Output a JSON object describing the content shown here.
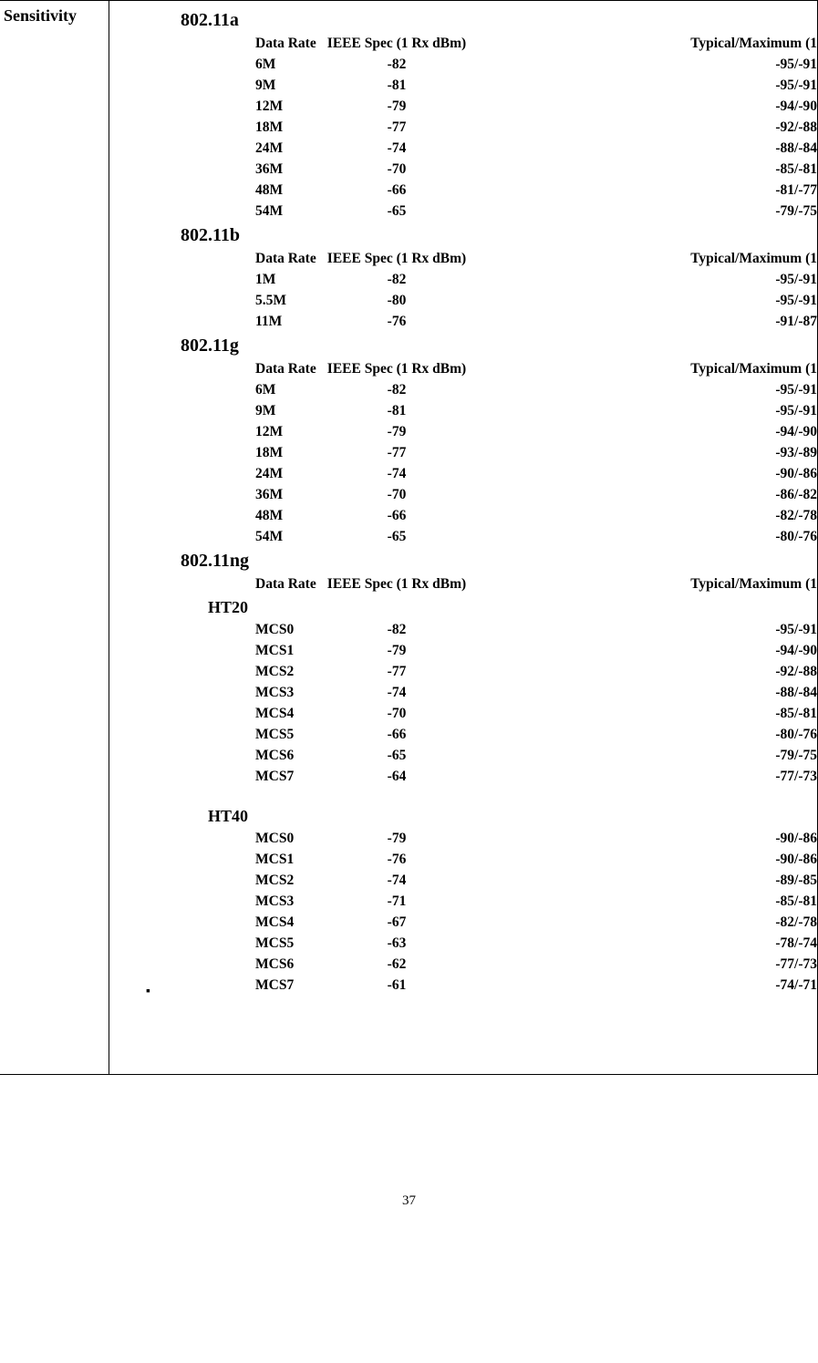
{
  "labels": {
    "rowHeader": "Sensitivity",
    "colRate": "Data Rate",
    "colSpec": "IEEE Spec (1 Rx dBm)",
    "colTyp": "Typical/Maximum (1",
    "pageNum": "37",
    "bullet": "▪"
  },
  "sections": [
    {
      "title": "802.11a",
      "showHeader": true,
      "rows": [
        {
          "rate": "6M",
          "spec": "-82",
          "typ": "-95/-91"
        },
        {
          "rate": "9M",
          "spec": "-81",
          "typ": "-95/-91"
        },
        {
          "rate": "12M",
          "spec": "-79",
          "typ": "-94/-90"
        },
        {
          "rate": "18M",
          "spec": "-77",
          "typ": "-92/-88"
        },
        {
          "rate": "24M",
          "spec": "-74",
          "typ": "-88/-84"
        },
        {
          "rate": "36M",
          "spec": "-70",
          "typ": "-85/-81"
        },
        {
          "rate": "48M",
          "spec": "-66",
          "typ": "-81/-77"
        },
        {
          "rate": "54M",
          "spec": "-65",
          "typ": "-79/-75"
        }
      ]
    },
    {
      "title": "802.11b",
      "showHeader": true,
      "rows": [
        {
          "rate": "1M",
          "spec": "-82",
          "typ": "-95/-91"
        },
        {
          "rate": "5.5M",
          "spec": "-80",
          "typ": "-95/-91"
        },
        {
          "rate": "11M",
          "spec": "-76",
          "typ": "-91/-87"
        }
      ]
    },
    {
      "title": "802.11g",
      "showHeader": true,
      "rows": [
        {
          "rate": "6M",
          "spec": "-82",
          "typ": "-95/-91"
        },
        {
          "rate": "9M",
          "spec": "-81",
          "typ": "-95/-91"
        },
        {
          "rate": "12M",
          "spec": "-79",
          "typ": "-94/-90"
        },
        {
          "rate": "18M",
          "spec": "-77",
          "typ": "-93/-89"
        },
        {
          "rate": "24M",
          "spec": "-74",
          "typ": "-90/-86"
        },
        {
          "rate": "36M",
          "spec": "-70",
          "typ": "-86/-82"
        },
        {
          "rate": "48M",
          "spec": "-66",
          "typ": "-82/-78"
        },
        {
          "rate": "54M",
          "spec": "-65",
          "typ": "-80/-76"
        }
      ]
    },
    {
      "title": "802.11ng",
      "showHeader": true,
      "rows": [],
      "subsections": [
        {
          "title": "HT20",
          "rows": [
            {
              "rate": "MCS0",
              "spec": "-82",
              "typ": "-95/-91"
            },
            {
              "rate": "MCS1",
              "spec": "-79",
              "typ": "-94/-90"
            },
            {
              "rate": "MCS2",
              "spec": "-77",
              "typ": "-92/-88"
            },
            {
              "rate": "MCS3",
              "spec": "-74",
              "typ": "-88/-84"
            },
            {
              "rate": "MCS4",
              "spec": "-70",
              "typ": "-85/-81"
            },
            {
              "rate": "MCS5",
              "spec": "-66",
              "typ": "-80/-76"
            },
            {
              "rate": "MCS6",
              "spec": "-65",
              "typ": "-79/-75"
            },
            {
              "rate": "MCS7",
              "spec": "-64",
              "typ": "-77/-73"
            }
          ]
        },
        {
          "title": "HT40",
          "spacerBefore": true,
          "rows": [
            {
              "rate": "MCS0",
              "spec": "-79",
              "typ": "-90/-86"
            },
            {
              "rate": "MCS1",
              "spec": "-76",
              "typ": "-90/-86"
            },
            {
              "rate": "MCS2",
              "spec": "-74",
              "typ": "-89/-85"
            },
            {
              "rate": "MCS3",
              "spec": "-71",
              "typ": "-85/-81"
            },
            {
              "rate": "MCS4",
              "spec": "-67",
              "typ": "-82/-78"
            },
            {
              "rate": "MCS5",
              "spec": "-63",
              "typ": "-78/-74"
            },
            {
              "rate": "MCS6",
              "spec": "-62",
              "typ": "-77/-73"
            },
            {
              "rate": "MCS7",
              "spec": "-61",
              "typ": "-74/-71"
            }
          ]
        }
      ]
    }
  ]
}
